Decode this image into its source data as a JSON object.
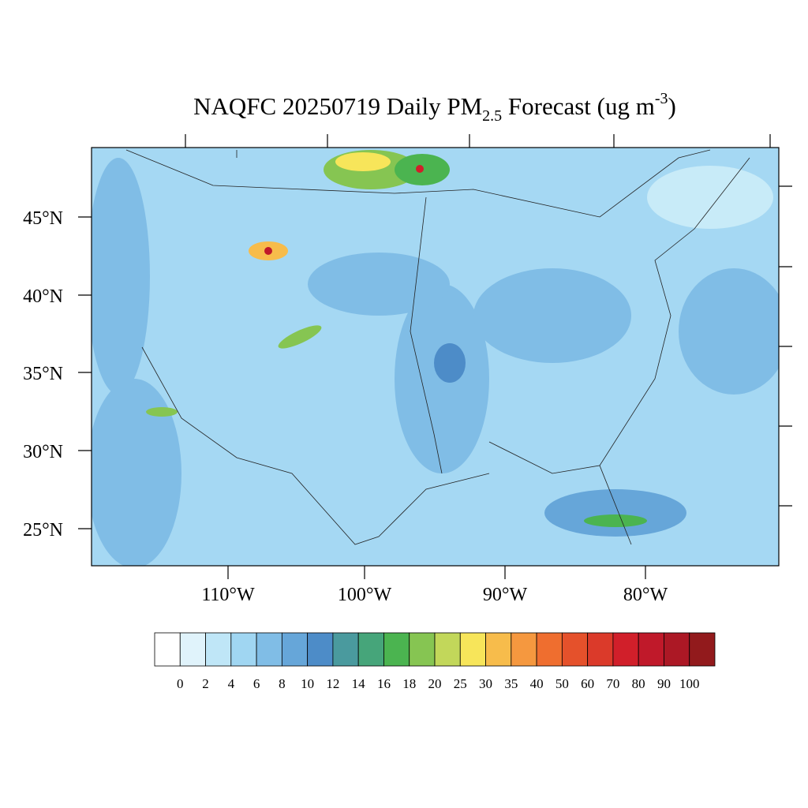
{
  "title": {
    "main": "NAQFC 20250719 Daily PM",
    "subscript": "2.5",
    "middle": " Forecast (ug m",
    "superscript": "-3",
    "end": ")"
  },
  "map": {
    "lat_labels": [
      "45°N",
      "40°N",
      "35°N",
      "30°N",
      "25°N"
    ],
    "lon_labels": [
      "110°W",
      "100°W",
      "90°W",
      "80°W"
    ]
  },
  "colorbar": {
    "colors": [
      "#ffffff",
      "#e0f3fb",
      "#bfe6f7",
      "#a0d6f2",
      "#80bde6",
      "#66a6d9",
      "#4d8cc8",
      "#4a9a9e",
      "#46a57a",
      "#4bb450",
      "#86c552",
      "#c2d75a",
      "#f7e55a",
      "#f7bc4b",
      "#f5983f",
      "#ef6e2f",
      "#e5512b",
      "#db3a2a",
      "#d11f2a",
      "#c0192a",
      "#ac1825",
      "#921a1c"
    ],
    "labels": [
      0,
      2,
      4,
      6,
      8,
      10,
      12,
      14,
      16,
      18,
      20,
      25,
      30,
      35,
      40,
      50,
      60,
      70,
      80,
      90,
      100
    ]
  }
}
